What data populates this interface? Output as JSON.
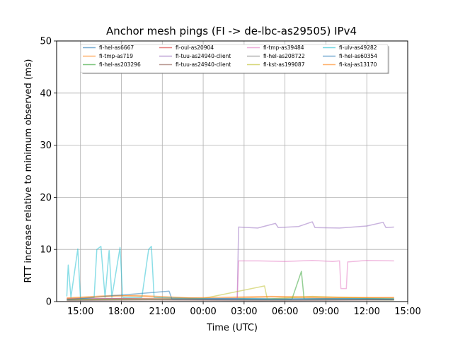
{
  "chart_data": {
    "type": "line",
    "title": "Anchor mesh pings (FI -> de-lbc-as29505) IPv4",
    "xlabel": "Time (UTC)",
    "ylabel": "RTT increase relative to minimum observed (ms)",
    "ylim": [
      0,
      50
    ],
    "xlim_hours": [
      13.25,
      39.0
    ],
    "x_ticks": [
      {
        "hour": 15,
        "label": "15:00"
      },
      {
        "hour": 18,
        "label": "18:00"
      },
      {
        "hour": 21,
        "label": "21:00"
      },
      {
        "hour": 24,
        "label": "00:00"
      },
      {
        "hour": 27,
        "label": "03:00"
      },
      {
        "hour": 30,
        "label": "06:00"
      },
      {
        "hour": 33,
        "label": "09:00"
      },
      {
        "hour": 36,
        "label": "12:00"
      },
      {
        "hour": 39,
        "label": "15:00"
      }
    ],
    "y_ticks": [
      0,
      10,
      20,
      30,
      40,
      50
    ],
    "grid": true,
    "legend_placement": "top",
    "series": [
      {
        "name": "fi-hel-as6667",
        "color": "#1f77b4",
        "points": [
          [
            14.0,
            0.5
          ],
          [
            18.0,
            0.6
          ],
          [
            22.0,
            0.4
          ],
          [
            26.0,
            0.6
          ],
          [
            30.0,
            0.5
          ],
          [
            34.0,
            0.6
          ],
          [
            38.0,
            0.5
          ]
        ]
      },
      {
        "name": "fi-tmp-as719",
        "color": "#ff7f0e",
        "points": [
          [
            14.0,
            0.7
          ],
          [
            17.5,
            1.2
          ],
          [
            21.0,
            0.8
          ],
          [
            25.0,
            0.6
          ],
          [
            29.0,
            0.9
          ],
          [
            33.0,
            0.7
          ],
          [
            38.0,
            0.8
          ]
        ]
      },
      {
        "name": "fi-hel-as203296",
        "color": "#2ca02c",
        "points": [
          [
            14.0,
            0.3
          ],
          [
            20.0,
            0.5
          ],
          [
            30.5,
            0.4
          ],
          [
            31.2,
            5.8
          ],
          [
            31.4,
            0.5
          ],
          [
            35.0,
            0.4
          ],
          [
            38.0,
            0.3
          ]
        ]
      },
      {
        "name": "fi-oul-as20904",
        "color": "#d62728",
        "points": [
          [
            14.0,
            0.4
          ],
          [
            18.0,
            0.6
          ],
          [
            24.0,
            0.4
          ],
          [
            30.0,
            0.5
          ],
          [
            38.0,
            0.4
          ]
        ]
      },
      {
        "name": "fi-tuu-as24940-client",
        "color": "#9467bd",
        "points": [
          [
            14.0,
            0.5
          ],
          [
            26.5,
            0.5
          ],
          [
            26.6,
            14.3
          ],
          [
            28.0,
            14.1
          ],
          [
            29.3,
            15.0
          ],
          [
            29.5,
            14.2
          ],
          [
            31.0,
            14.4
          ],
          [
            32.0,
            15.3
          ],
          [
            32.2,
            14.2
          ],
          [
            34.0,
            14.1
          ],
          [
            36.0,
            14.5
          ],
          [
            37.2,
            15.2
          ],
          [
            37.4,
            14.2
          ],
          [
            38.0,
            14.3
          ]
        ]
      },
      {
        "name": "fi-tuu-as24940-client",
        "color": "#8c564b",
        "points": [
          [
            14.0,
            0.2
          ],
          [
            20.0,
            0.3
          ],
          [
            28.0,
            0.2
          ],
          [
            38.0,
            0.3
          ]
        ]
      },
      {
        "name": "fi-tmp-as39484",
        "color": "#e377c2",
        "points": [
          [
            14.0,
            0.6
          ],
          [
            26.5,
            0.6
          ],
          [
            26.6,
            7.8
          ],
          [
            28.0,
            7.8
          ],
          [
            30.0,
            7.7
          ],
          [
            32.0,
            7.9
          ],
          [
            33.5,
            7.7
          ],
          [
            34.0,
            7.8
          ],
          [
            34.1,
            2.5
          ],
          [
            34.5,
            2.5
          ],
          [
            34.6,
            7.6
          ],
          [
            36.0,
            7.9
          ],
          [
            38.0,
            7.8
          ]
        ]
      },
      {
        "name": "fi-hel-as208722",
        "color": "#7f7f7f",
        "points": [
          [
            14.0,
            0.3
          ],
          [
            22.0,
            0.4
          ],
          [
            30.0,
            0.3
          ],
          [
            38.0,
            0.4
          ]
        ]
      },
      {
        "name": "fi-kst-as199087",
        "color": "#bcbd22",
        "points": [
          [
            14.0,
            0.4
          ],
          [
            24.0,
            0.6
          ],
          [
            28.5,
            3.0
          ],
          [
            28.7,
            0.5
          ],
          [
            32.0,
            1.0
          ],
          [
            38.0,
            0.5
          ]
        ]
      },
      {
        "name": "fi-ulv-as49282",
        "color": "#17becf",
        "points": [
          [
            14.0,
            1.0
          ],
          [
            14.1,
            7.0
          ],
          [
            14.3,
            0.8
          ],
          [
            14.8,
            10.1
          ],
          [
            15.0,
            0.5
          ],
          [
            16.0,
            0.8
          ],
          [
            16.2,
            10.0
          ],
          [
            16.5,
            10.6
          ],
          [
            16.8,
            0.8
          ],
          [
            17.1,
            9.8
          ],
          [
            17.3,
            0.8
          ],
          [
            17.9,
            10.4
          ],
          [
            18.1,
            0.8
          ],
          [
            19.5,
            0.8
          ],
          [
            20.0,
            10.0
          ],
          [
            20.2,
            10.6
          ],
          [
            20.4,
            0.8
          ],
          [
            24.0,
            0.6
          ],
          [
            30.0,
            0.5
          ],
          [
            38.0,
            0.6
          ]
        ]
      },
      {
        "name": "fi-hel-as60354",
        "color": "#1f77b4",
        "points": [
          [
            14.0,
            0.4
          ],
          [
            21.5,
            2.0
          ],
          [
            21.7,
            0.5
          ],
          [
            28.0,
            0.4
          ],
          [
            36.0,
            0.5
          ],
          [
            38.0,
            0.4
          ]
        ]
      },
      {
        "name": "fi-kaj-as13170",
        "color": "#ff7f0e",
        "points": [
          [
            14.0,
            0.6
          ],
          [
            19.0,
            1.2
          ],
          [
            23.0,
            0.7
          ],
          [
            29.0,
            1.0
          ],
          [
            35.0,
            0.8
          ],
          [
            38.0,
            0.7
          ]
        ]
      }
    ]
  }
}
